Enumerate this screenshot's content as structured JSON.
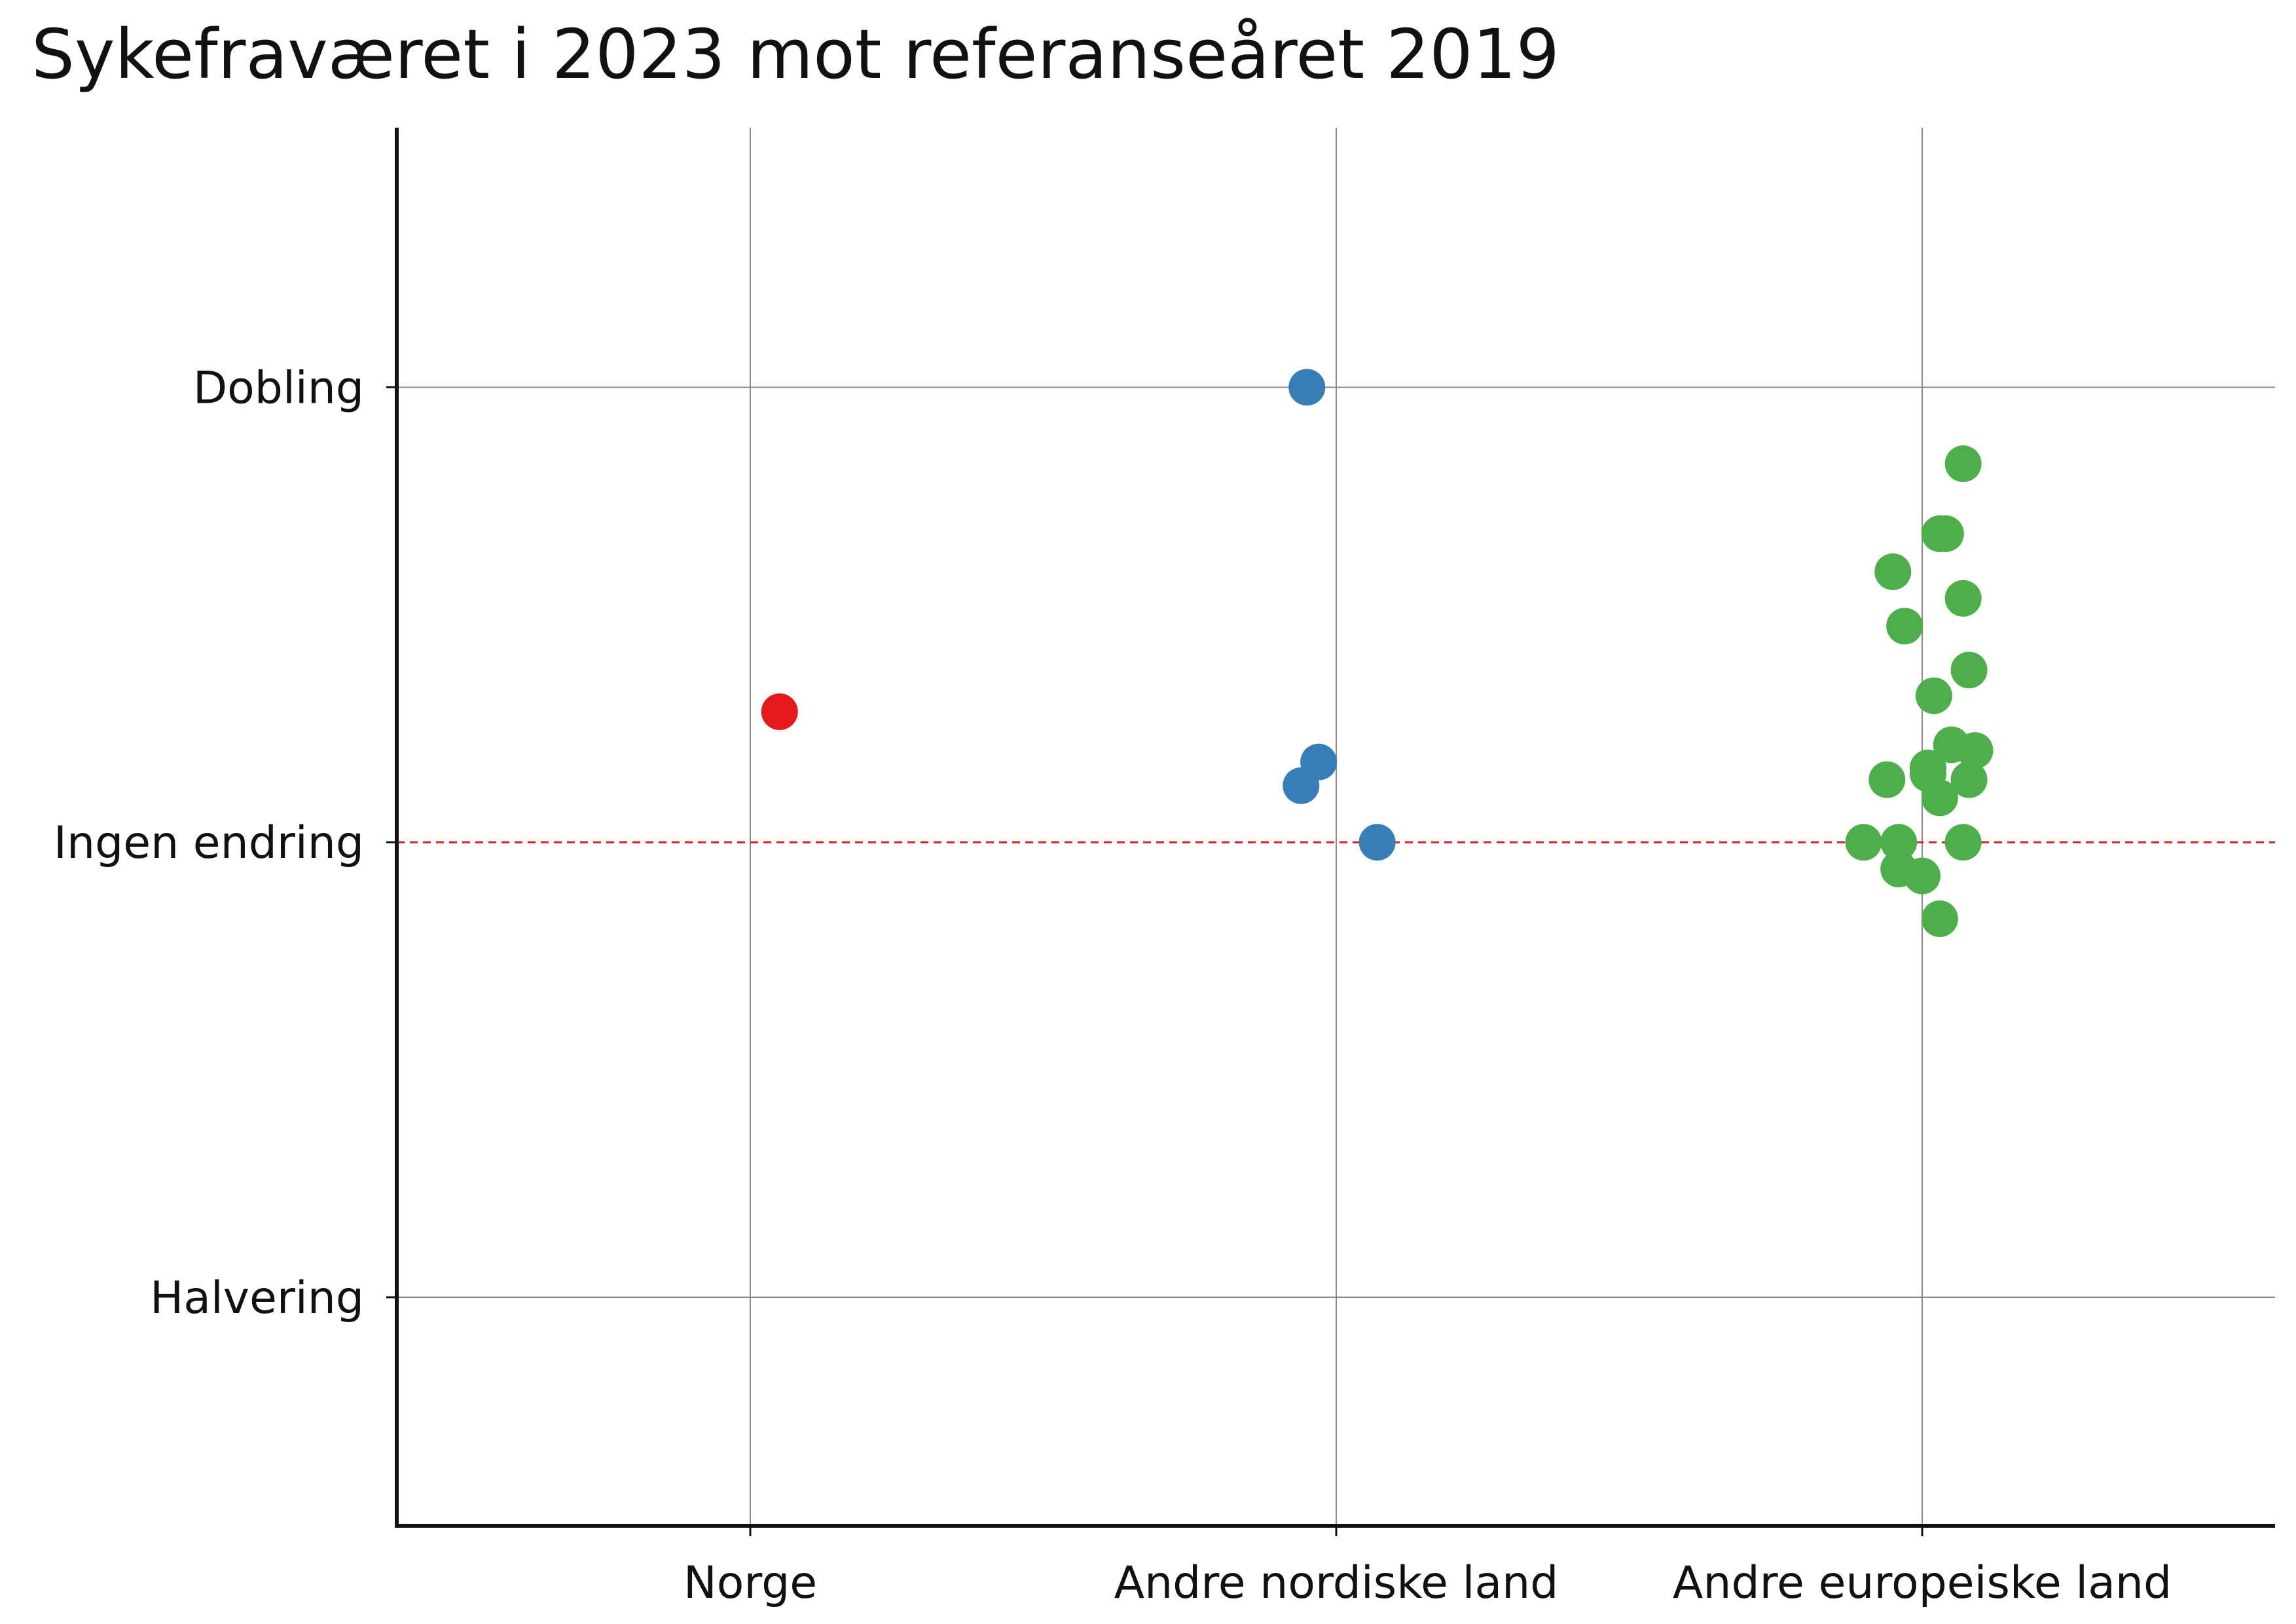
{
  "chart_data": {
    "type": "scatter",
    "title": "Sykefraværet i 2023 mot referanseåret 2019",
    "xlabel": "",
    "ylabel": "",
    "categories": [
      "Norge",
      "Andre nordiske land",
      "Andre europeiske land"
    ],
    "y_scale": "log2",
    "ylim": [
      0.353,
      2.97
    ],
    "y_ticks": [
      {
        "value": 2.0,
        "label": "Dobling"
      },
      {
        "value": 1.0,
        "label": "Ingen endring"
      },
      {
        "value": 0.5,
        "label": "Halvering"
      }
    ],
    "reference_line": {
      "value": 1.0,
      "style": "dashed",
      "color": "#e41a1c"
    },
    "grid": true,
    "colors": {
      "Norge": "#e41a1c",
      "Andre nordiske land": "#377eb8",
      "Andre europeiske land": "#4daf4a"
    },
    "series": [
      {
        "category": "Norge",
        "points": [
          {
            "x": 0.05,
            "y": 1.22
          }
        ]
      },
      {
        "category": "Andre nordiske land",
        "points": [
          {
            "x": -0.05,
            "y": 2.0
          },
          {
            "x": -0.03,
            "y": 1.13
          },
          {
            "x": -0.06,
            "y": 1.09
          },
          {
            "x": 0.07,
            "y": 1.0
          }
        ]
      },
      {
        "category": "Andre europeiske land",
        "points": [
          {
            "x": 0.07,
            "y": 1.78
          },
          {
            "x": 0.04,
            "y": 1.6
          },
          {
            "x": 0.03,
            "y": 1.6
          },
          {
            "x": -0.05,
            "y": 1.51
          },
          {
            "x": 0.07,
            "y": 1.45
          },
          {
            "x": -0.03,
            "y": 1.39
          },
          {
            "x": 0.08,
            "y": 1.3
          },
          {
            "x": 0.02,
            "y": 1.25
          },
          {
            "x": 0.05,
            "y": 1.16
          },
          {
            "x": 0.09,
            "y": 1.15
          },
          {
            "x": 0.01,
            "y": 1.12
          },
          {
            "x": -0.06,
            "y": 1.1
          },
          {
            "x": 0.08,
            "y": 1.1
          },
          {
            "x": 0.01,
            "y": 1.11
          },
          {
            "x": 0.03,
            "y": 1.07
          },
          {
            "x": -0.1,
            "y": 1.0
          },
          {
            "x": -0.04,
            "y": 1.0
          },
          {
            "x": 0.07,
            "y": 1.0
          },
          {
            "x": -0.04,
            "y": 0.96
          },
          {
            "x": 0.0,
            "y": 0.95
          },
          {
            "x": 0.03,
            "y": 0.89
          }
        ]
      }
    ]
  }
}
